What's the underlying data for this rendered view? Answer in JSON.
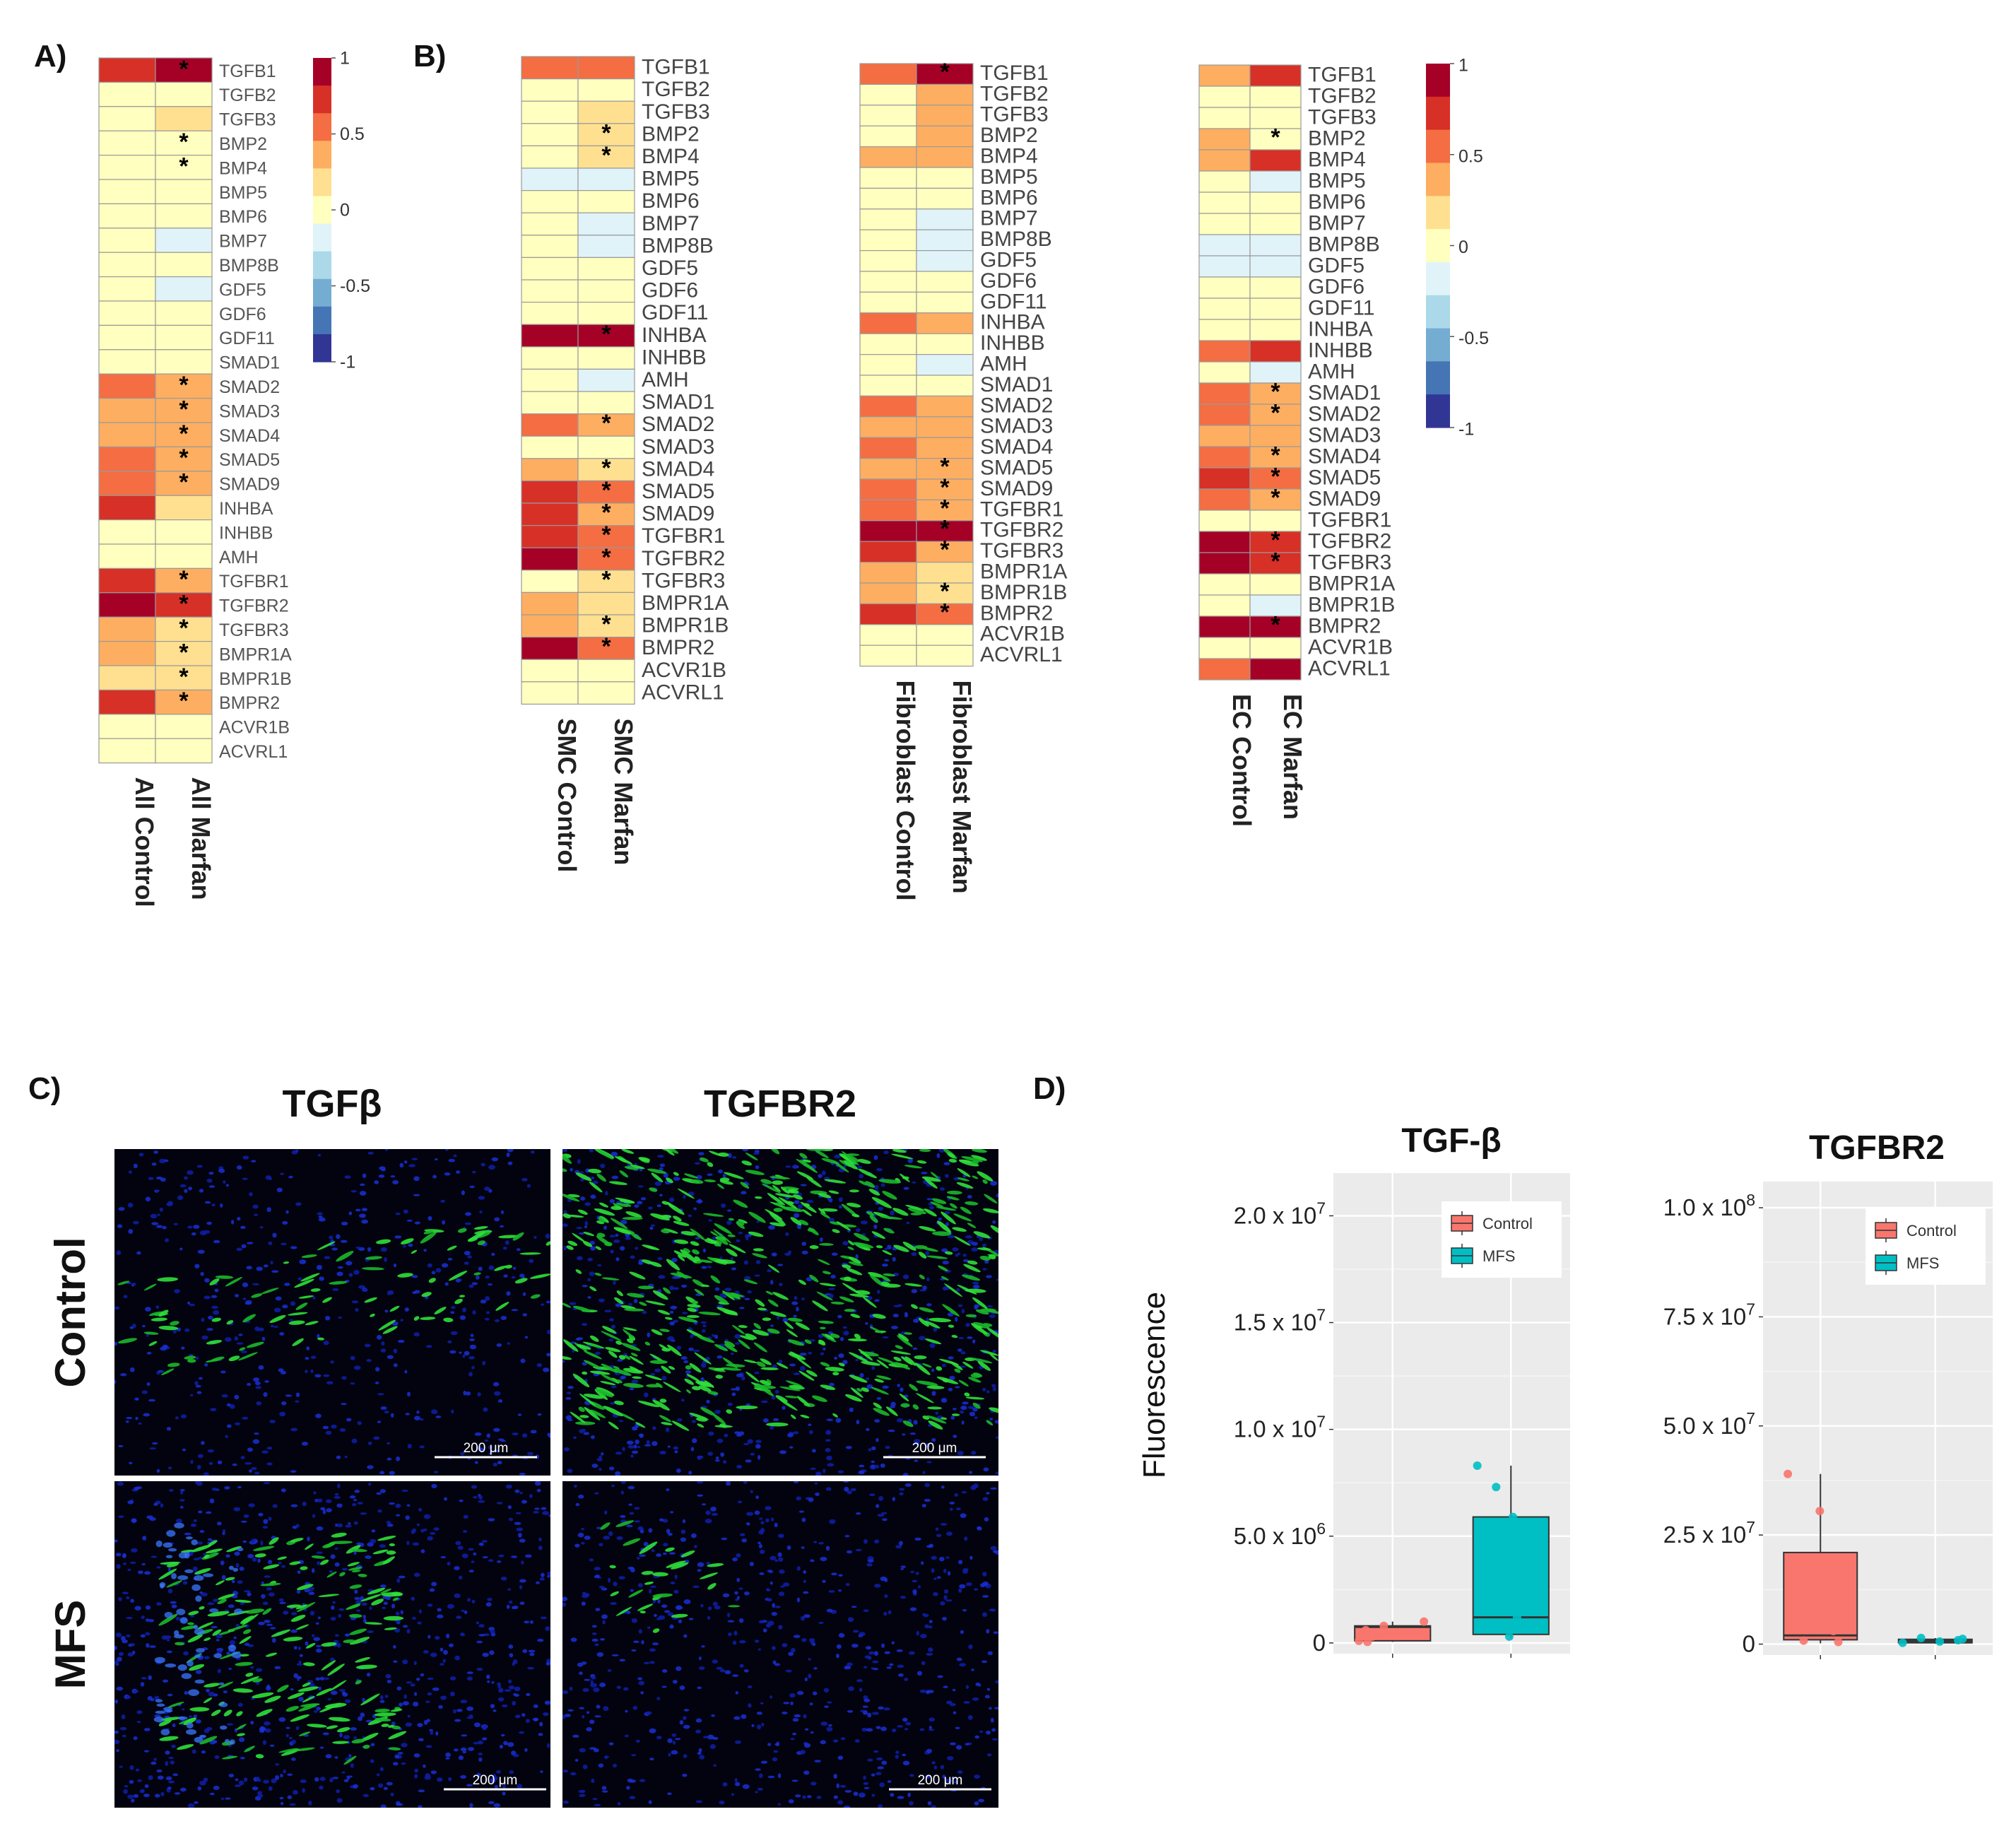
{
  "panels": {
    "a": {
      "label": "A)"
    },
    "b": {
      "label": "B)"
    },
    "c": {
      "label": "C)"
    },
    "d": {
      "label": "D)"
    }
  },
  "scale_ticks": [
    "1",
    "0.5",
    "0",
    "-0.5",
    "-1"
  ],
  "heatmap_colors": [
    "#313695",
    "#4575b4",
    "#74add1",
    "#abd9e9",
    "#e0f3f8",
    "#ffffbf",
    "#fee090",
    "#fdae61",
    "#f46d43",
    "#d73027",
    "#a50026"
  ],
  "micrographs": {
    "columns": [
      "TGFβ",
      "TGFBR2"
    ],
    "rows": [
      "Control",
      "MFS"
    ],
    "scalebar_label": "200 μm"
  },
  "chart_data": [
    {
      "type": "heatmap",
      "panel": "A",
      "columns": [
        "All Control",
        "All Marfan"
      ],
      "rows": [
        "TGFB1",
        "TGFB2",
        "TGFB3",
        "BMP2",
        "BMP4",
        "BMP5",
        "BMP6",
        "BMP7",
        "BMP8B",
        "GDF5",
        "GDF6",
        "GDF11",
        "SMAD1",
        "SMAD2",
        "SMAD3",
        "SMAD4",
        "SMAD5",
        "SMAD9",
        "INHBA",
        "INHBB",
        "AMH",
        "TGFBR1",
        "TGFBR2",
        "TGFBR3",
        "BMPR1A",
        "BMPR1B",
        "BMPR2",
        "ACVR1B",
        "ACVRL1"
      ],
      "values": [
        [
          0.8,
          0.95
        ],
        [
          0.05,
          0.05
        ],
        [
          0.05,
          0.1
        ],
        [
          0.05,
          0.05
        ],
        [
          0.05,
          0.05
        ],
        [
          0.05,
          0.05
        ],
        [
          0.05,
          0.05
        ],
        [
          0.05,
          -0.15
        ],
        [
          0.05,
          0.05
        ],
        [
          0.05,
          -0.15
        ],
        [
          0.05,
          0.05
        ],
        [
          0.05,
          0.05
        ],
        [
          0.05,
          0.05
        ],
        [
          0.5,
          0.35
        ],
        [
          0.4,
          0.3
        ],
        [
          0.35,
          0.3
        ],
        [
          0.6,
          0.45
        ],
        [
          0.5,
          0.3
        ],
        [
          0.7,
          0.2
        ],
        [
          0.05,
          0.05
        ],
        [
          0.05,
          0.05
        ],
        [
          0.7,
          0.3
        ],
        [
          0.95,
          0.8
        ],
        [
          0.3,
          0.25
        ],
        [
          0.3,
          0.2
        ],
        [
          0.2,
          0.15
        ],
        [
          0.8,
          0.3
        ],
        [
          0.05,
          0.05
        ],
        [
          0.05,
          0.05
        ]
      ],
      "significant": [
        [
          0,
          1
        ],
        [
          3,
          1
        ],
        [
          4,
          1
        ],
        [
          13,
          1
        ],
        [
          14,
          1
        ],
        [
          15,
          1
        ],
        [
          16,
          1
        ],
        [
          17,
          1
        ],
        [
          21,
          1
        ],
        [
          22,
          1
        ],
        [
          23,
          1
        ],
        [
          24,
          1
        ],
        [
          25,
          1
        ],
        [
          26,
          1
        ]
      ],
      "colorbar": {
        "min": -1,
        "max": 1,
        "ticks": [
          1,
          0.5,
          0,
          -0.5,
          -1
        ]
      }
    },
    {
      "type": "heatmap",
      "panel": "B",
      "columns": [
        "SMC Control",
        "SMC Marfan"
      ],
      "rows": [
        "TGFB1",
        "TGFB2",
        "TGFB3",
        "BMP2",
        "BMP4",
        "BMP5",
        "BMP6",
        "BMP7",
        "BMP8B",
        "GDF5",
        "GDF6",
        "GDF11",
        "INHBA",
        "INHBB",
        "AMH",
        "SMAD1",
        "SMAD2",
        "SMAD3",
        "SMAD4",
        "SMAD5",
        "SMAD9",
        "TGFBR1",
        "TGFBR2",
        "TGFBR3",
        "BMPR1A",
        "BMPR1B",
        "BMPR2",
        "ACVR1B",
        "ACVRL1"
      ],
      "values": [
        [
          0.55,
          0.5
        ],
        [
          0.05,
          0.05
        ],
        [
          0.05,
          0.25
        ],
        [
          0.05,
          0.1
        ],
        [
          0.05,
          0.1
        ],
        [
          -0.15,
          -0.15
        ],
        [
          0.05,
          -0.1
        ],
        [
          0.05,
          -0.15
        ],
        [
          0.05,
          -0.15
        ],
        [
          0.05,
          -0.1
        ],
        [
          0.05,
          0.05
        ],
        [
          0.05,
          0.05
        ],
        [
          0.95,
          0.95
        ],
        [
          0.05,
          0.05
        ],
        [
          0.05,
          -0.15
        ],
        [
          0.05,
          0.05
        ],
        [
          0.6,
          0.3
        ],
        [
          0.05,
          0.05
        ],
        [
          0.3,
          0.15
        ],
        [
          0.75,
          0.5
        ],
        [
          0.7,
          0.45
        ],
        [
          0.8,
          0.5
        ],
        [
          0.9,
          0.55
        ],
        [
          0.05,
          0.15
        ],
        [
          0.3,
          0.25
        ],
        [
          0.3,
          0.25
        ],
        [
          0.95,
          0.55
        ],
        [
          0.05,
          0.05
        ],
        [
          0.05,
          0.05
        ]
      ],
      "significant": [
        [
          3,
          1
        ],
        [
          4,
          1
        ],
        [
          12,
          1
        ],
        [
          16,
          1
        ],
        [
          18,
          1
        ],
        [
          19,
          1
        ],
        [
          20,
          1
        ],
        [
          21,
          1
        ],
        [
          22,
          1
        ],
        [
          23,
          1
        ],
        [
          25,
          1
        ],
        [
          26,
          1
        ]
      ]
    },
    {
      "type": "heatmap",
      "panel": "B",
      "columns": [
        "Fibroblast Control",
        "Fibroblast Marfan"
      ],
      "rows": [
        "TGFB1",
        "TGFB2",
        "TGFB3",
        "BMP2",
        "BMP4",
        "BMP5",
        "BMP6",
        "BMP7",
        "BMP8B",
        "GDF5",
        "GDF6",
        "GDF11",
        "INHBA",
        "INHBB",
        "AMH",
        "SMAD1",
        "SMAD2",
        "SMAD3",
        "SMAD4",
        "SMAD5",
        "SMAD9",
        "TGFBR1",
        "TGFBR2",
        "TGFBR3",
        "BMPR1A",
        "BMPR1B",
        "BMPR2",
        "ACVR1B",
        "ACVRL1"
      ],
      "values": [
        [
          0.55,
          0.95
        ],
        [
          0.05,
          0.3
        ],
        [
          0.05,
          0.35
        ],
        [
          0.05,
          0.3
        ],
        [
          0.3,
          0.35
        ],
        [
          0.05,
          -0.1
        ],
        [
          0.05,
          -0.1
        ],
        [
          0.05,
          -0.15
        ],
        [
          0.05,
          -0.15
        ],
        [
          0.05,
          -0.15
        ],
        [
          0.05,
          0.05
        ],
        [
          0.05,
          0.05
        ],
        [
          0.55,
          0.3
        ],
        [
          0.05,
          0.05
        ],
        [
          0.05,
          -0.15
        ],
        [
          0.05,
          0.05
        ],
        [
          0.5,
          0.45
        ],
        [
          0.45,
          0.4
        ],
        [
          0.5,
          0.35
        ],
        [
          0.45,
          0.45
        ],
        [
          0.55,
          0.4
        ],
        [
          0.6,
          0.45
        ],
        [
          0.95,
          0.9
        ],
        [
          0.75,
          0.3
        ],
        [
          0.3,
          0.25
        ],
        [
          0.3,
          0.25
        ],
        [
          0.8,
          0.6
        ],
        [
          0.05,
          0.05
        ],
        [
          0.05,
          0.05
        ]
      ],
      "significant": [
        [
          0,
          1
        ],
        [
          19,
          1
        ],
        [
          20,
          1
        ],
        [
          21,
          1
        ],
        [
          22,
          1
        ],
        [
          23,
          1
        ],
        [
          25,
          1
        ],
        [
          26,
          1
        ]
      ]
    },
    {
      "type": "heatmap",
      "panel": "B",
      "columns": [
        "EC Control",
        "EC Marfan"
      ],
      "rows": [
        "TGFB1",
        "TGFB2",
        "TGFB3",
        "BMP2",
        "BMP4",
        "BMP5",
        "BMP6",
        "BMP7",
        "BMP8B",
        "GDF5",
        "GDF6",
        "GDF11",
        "INHBA",
        "INHBB",
        "AMH",
        "SMAD1",
        "SMAD2",
        "SMAD3",
        "SMAD4",
        "SMAD5",
        "SMAD9",
        "TGFBR1",
        "TGFBR2",
        "TGFBR3",
        "BMPR1A",
        "BMPR1B",
        "BMPR2",
        "ACVR1B",
        "ACVRL1"
      ],
      "values": [
        [
          0.3,
          0.8
        ],
        [
          0.05,
          0.05
        ],
        [
          0.05,
          0.05
        ],
        [
          0.3,
          0.05
        ],
        [
          0.3,
          0.8
        ],
        [
          0.05,
          -0.15
        ],
        [
          0.05,
          0.05
        ],
        [
          0.05,
          -0.1
        ],
        [
          -0.15,
          -0.15
        ],
        [
          -0.15,
          -0.15
        ],
        [
          0.05,
          0.05
        ],
        [
          0.05,
          0.05
        ],
        [
          0.05,
          0.05
        ],
        [
          0.55,
          0.75
        ],
        [
          0.05,
          -0.15
        ],
        [
          0.55,
          0.3
        ],
        [
          0.6,
          0.35
        ],
        [
          0.35,
          0.3
        ],
        [
          0.5,
          0.3
        ],
        [
          0.75,
          0.5
        ],
        [
          0.55,
          0.3
        ],
        [
          0.05,
          0.05
        ],
        [
          0.95,
          0.85
        ],
        [
          0.9,
          0.8
        ],
        [
          0.05,
          0.05
        ],
        [
          0.05,
          -0.15
        ],
        [
          0.95,
          0.95
        ],
        [
          0.05,
          0.05
        ],
        [
          0.55,
          0.95
        ]
      ],
      "significant": [
        [
          3,
          1
        ],
        [
          15,
          1
        ],
        [
          16,
          1
        ],
        [
          18,
          1
        ],
        [
          19,
          1
        ],
        [
          20,
          1
        ],
        [
          22,
          1
        ],
        [
          23,
          1
        ],
        [
          26,
          1
        ]
      ],
      "colorbar": {
        "min": -1,
        "max": 1,
        "ticks": [
          1,
          0.5,
          0,
          -0.5,
          -1
        ]
      }
    },
    {
      "type": "box",
      "panel": "D",
      "title": "TGF-β",
      "ylabel": "Fluorescence",
      "ylim": [
        -500000,
        22000000
      ],
      "yticks": [
        0,
        5000000,
        10000000,
        15000000,
        20000000
      ],
      "ytick_labels": [
        [
          "0",
          ""
        ],
        [
          "5.0 x 10",
          "6"
        ],
        [
          "1.0 x 10",
          "7"
        ],
        [
          "1.5 x 10",
          "7"
        ],
        [
          "2.0 x 10",
          "7"
        ]
      ],
      "legend": [
        "Control",
        "MFS"
      ],
      "series": [
        {
          "name": "Control",
          "color": "#f8766d",
          "q1": 100000,
          "median": 750000,
          "q3": 800000,
          "whisker_low": 50000,
          "whisker_high": 1000000,
          "points": [
            100000,
            300000,
            600000,
            800000,
            1000000,
            50000
          ]
        },
        {
          "name": "MFS",
          "color": "#00bfc4",
          "q1": 400000,
          "median": 1200000,
          "q3": 5900000,
          "whisker_low": 200000,
          "whisker_high": 8300000,
          "points": [
            8300000,
            7300000,
            5900000,
            1200000,
            300000
          ]
        }
      ]
    },
    {
      "type": "box",
      "panel": "D",
      "title": "TGFBR2",
      "ylim": [
        -2500000,
        106000000
      ],
      "yticks": [
        0,
        25000000,
        50000000,
        75000000,
        100000000
      ],
      "ytick_labels": [
        [
          "0",
          ""
        ],
        [
          "2.5 x 10",
          "7"
        ],
        [
          "5.0 x 10",
          "7"
        ],
        [
          "7.5 x 10",
          "7"
        ],
        [
          "1.0 x 10",
          "8"
        ]
      ],
      "legend": [
        "Control",
        "MFS"
      ],
      "series": [
        {
          "name": "Control",
          "color": "#f8766d",
          "q1": 1000000,
          "median": 2000000,
          "q3": 21000000,
          "whisker_low": 200000,
          "whisker_high": 39000000,
          "points": [
            39000000,
            30500000,
            18000000,
            3000000,
            500000,
            800000
          ]
        },
        {
          "name": "MFS",
          "color": "#00bfc4",
          "q1": 300000,
          "median": 700000,
          "q3": 1100000,
          "whisker_low": 100000,
          "whisker_high": 1400000,
          "points": [
            300000,
            600000,
            900000,
            1200000,
            1400000
          ]
        }
      ]
    }
  ]
}
